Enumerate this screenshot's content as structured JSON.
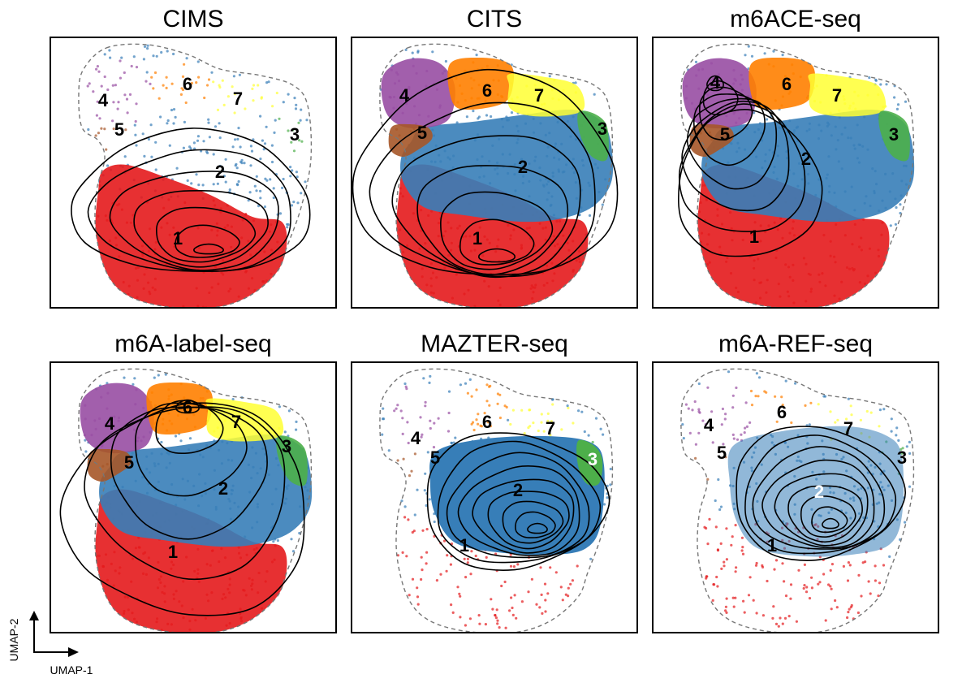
{
  "chart_data": {
    "type": "scatter",
    "xlabel": "UMAP-1",
    "ylabel": "UMAP-2",
    "grid": false,
    "axis_ticks": false,
    "colors": {
      "1": "#e41a1c",
      "2": "#377eb8",
      "3": "#4daf4a",
      "4": "#984ea3",
      "5": "#a65628",
      "6": "#ff7f00",
      "7": "#ffff33"
    },
    "outline_style": "dashed grey outline of all points",
    "panels": [
      {
        "title": "CIMS",
        "clusters": [
          "1",
          "2",
          "3",
          "4",
          "5",
          "6",
          "7"
        ],
        "density_peak_cluster": "1",
        "density_contours": 7
      },
      {
        "title": "CITS",
        "clusters": [
          "1",
          "2",
          "3",
          "4",
          "5",
          "6",
          "7"
        ],
        "density_peak_cluster": "1",
        "density_contours": 7
      },
      {
        "title": "m6ACE-seq",
        "clusters": [
          "1",
          "2",
          "3",
          "4",
          "5",
          "6",
          "7"
        ],
        "density_peak_cluster": "4",
        "density_contours": 8
      },
      {
        "title": "m6A-label-seq",
        "clusters": [
          "1",
          "2",
          "3",
          "4",
          "5",
          "6",
          "7"
        ],
        "density_peak_cluster": "6",
        "density_contours": 6
      },
      {
        "title": "MAZTER-seq",
        "clusters": [
          "1",
          "2",
          "3",
          "4",
          "5",
          "6",
          "7"
        ],
        "density_peak_cluster": "2",
        "density_contours": 9
      },
      {
        "title": "m6A-REF-seq",
        "clusters": [
          "1",
          "2",
          "3",
          "4",
          "5",
          "6",
          "7"
        ],
        "density_peak_cluster": "2",
        "density_contours": 9
      }
    ]
  }
}
